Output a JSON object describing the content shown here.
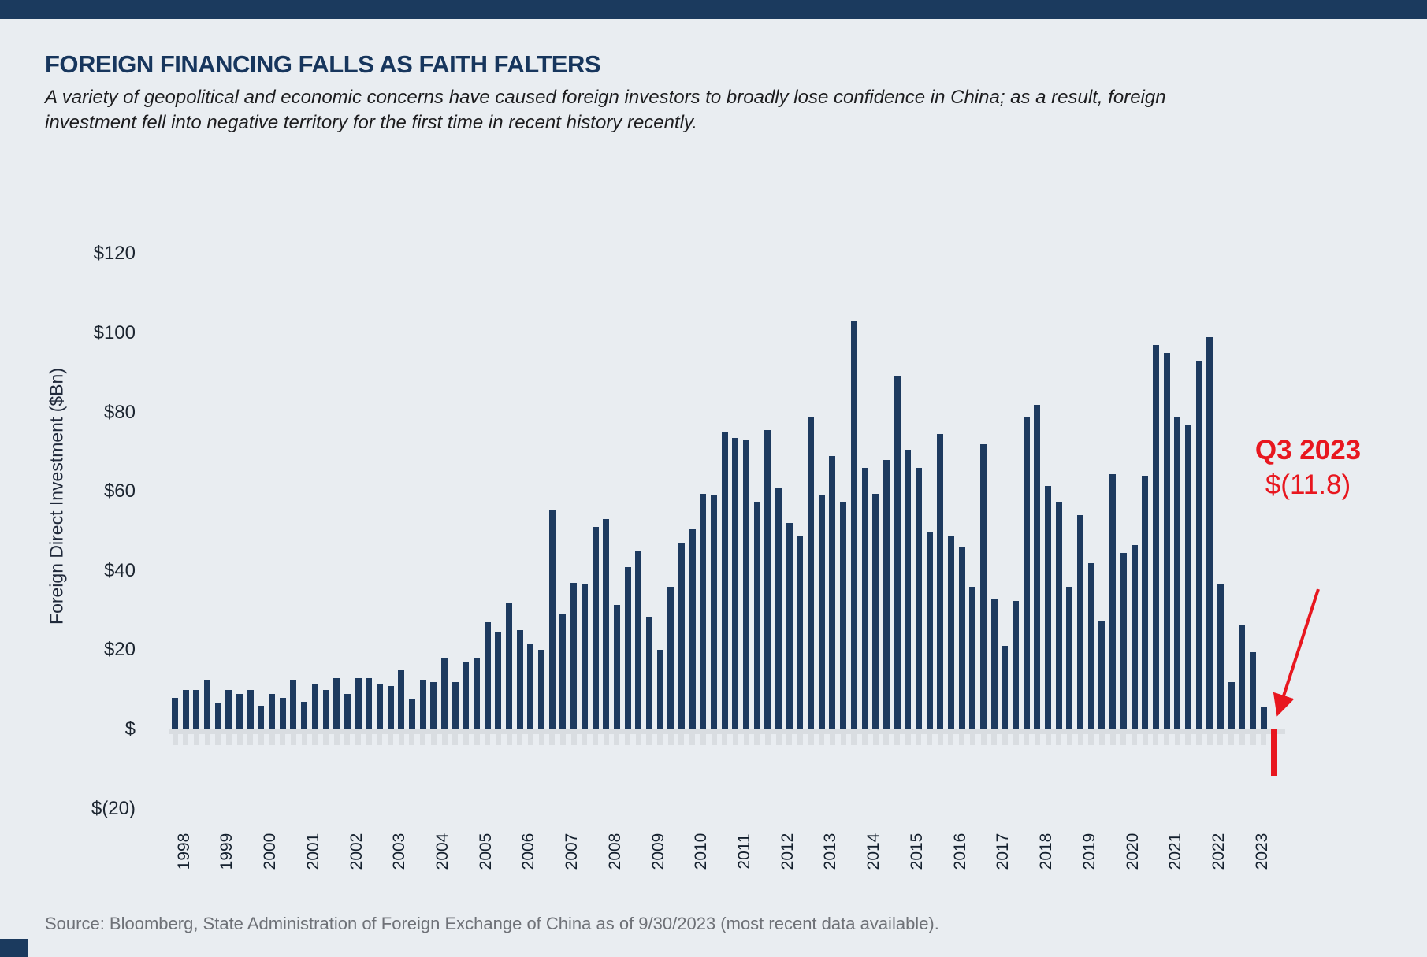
{
  "header": {
    "title": "FOREIGN FINANCING FALLS AS FAITH FALTERS",
    "subtitle": "A variety of geopolitical and economic concerns have caused foreign investors to broadly lose confidence in China; as a result, foreign investment fell into negative territory for the first time in recent history recently."
  },
  "footer": {
    "source": "Source: Bloomberg, State Administration of Foreign Exchange of China as of 9/30/2023 (most recent data available)."
  },
  "colors": {
    "bar": "#1d3a5f",
    "negative_bar": "#e8171f",
    "background": "#e9edf1",
    "topbar": "#1b3a5e",
    "title": "#17365d",
    "axis_tick_band": "#d9dde1",
    "source_text": "#6e7177"
  },
  "chart_data": {
    "type": "bar",
    "title": "FOREIGN FINANCING FALLS AS FAITH FALTERS",
    "ylabel": "Foreign Direct Investment ($Bn)",
    "xlabel": "",
    "unit": "USD billions, quarterly",
    "ylim": [
      -20,
      120
    ],
    "grid": false,
    "yticks": [
      {
        "label": "$120",
        "value": 120
      },
      {
        "label": "$100",
        "value": 100
      },
      {
        "label": "$80",
        "value": 80
      },
      {
        "label": "$60",
        "value": 60
      },
      {
        "label": "$40",
        "value": 40
      },
      {
        "label": "$20",
        "value": 20
      },
      {
        "label": "$",
        "value": 0
      },
      {
        "label": "$(20)",
        "value": -20
      }
    ],
    "series": [
      {
        "year": "1998",
        "values": [
          8,
          10,
          10,
          12.5
        ]
      },
      {
        "year": "1999",
        "values": [
          6.5,
          10,
          9,
          10
        ]
      },
      {
        "year": "2000",
        "values": [
          6,
          9,
          8,
          12.5
        ]
      },
      {
        "year": "2001",
        "values": [
          7,
          11.5,
          10,
          13
        ]
      },
      {
        "year": "2002",
        "values": [
          9,
          13,
          13,
          11.5
        ]
      },
      {
        "year": "2003",
        "values": [
          11,
          15,
          7.5,
          12.5
        ]
      },
      {
        "year": "2004",
        "values": [
          12,
          18,
          12,
          17
        ]
      },
      {
        "year": "2005",
        "values": [
          18,
          27,
          24.5,
          32
        ]
      },
      {
        "year": "2006",
        "values": [
          25,
          21.5,
          20,
          55.5
        ]
      },
      {
        "year": "2007",
        "values": [
          29,
          37,
          36.5,
          51
        ]
      },
      {
        "year": "2008",
        "values": [
          53,
          31.5,
          41,
          45
        ]
      },
      {
        "year": "2009",
        "values": [
          28.5,
          20,
          36,
          47
        ]
      },
      {
        "year": "2010",
        "values": [
          50.5,
          59.5,
          59,
          75
        ]
      },
      {
        "year": "2011",
        "values": [
          73.5,
          73,
          57.5,
          75.5
        ]
      },
      {
        "year": "2012",
        "values": [
          61,
          52,
          49,
          79
        ]
      },
      {
        "year": "2013",
        "values": [
          59,
          69,
          57.5,
          103
        ]
      },
      {
        "year": "2014",
        "values": [
          66,
          59.5,
          68,
          89
        ]
      },
      {
        "year": "2015",
        "values": [
          70.5,
          66,
          50,
          74.5
        ]
      },
      {
        "year": "2016",
        "values": [
          49,
          46,
          36,
          72
        ]
      },
      {
        "year": "2017",
        "values": [
          33,
          21,
          32.5,
          79
        ]
      },
      {
        "year": "2018",
        "values": [
          82,
          61.5,
          57.5,
          36
        ]
      },
      {
        "year": "2019",
        "values": [
          54,
          42,
          27.5,
          64.5
        ]
      },
      {
        "year": "2020",
        "values": [
          44.5,
          46.5,
          64,
          97
        ]
      },
      {
        "year": "2021",
        "values": [
          95,
          79,
          77,
          93
        ]
      },
      {
        "year": "2022",
        "values": [
          99,
          36.5,
          12,
          26.5
        ]
      },
      {
        "year": "2023",
        "values": [
          19.5,
          5.5,
          -11.8
        ]
      }
    ],
    "annotation": {
      "label": "Q3 2023",
      "value_label": "$(11.8)",
      "value": -11.8,
      "color": "#e8171f"
    },
    "legend": null
  }
}
